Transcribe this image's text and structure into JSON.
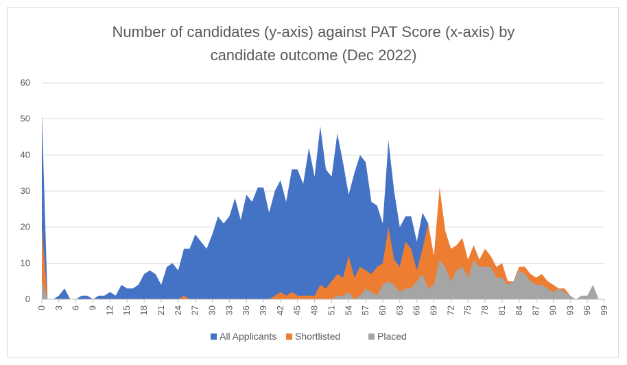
{
  "chart_data": {
    "type": "area",
    "title_line1": "Number of candidates (y-axis) against PAT Score (x-axis) by",
    "title_line2": "candidate outcome (Dec 2022)",
    "xlabel": "",
    "ylabel": "",
    "ylim": [
      0,
      60
    ],
    "y_ticks": [
      0,
      10,
      20,
      30,
      40,
      50,
      60
    ],
    "xlim": [
      0,
      99
    ],
    "x_tick_step": 3,
    "grid": true,
    "legend_position": "bottom",
    "series": [
      {
        "name": "All Applicants",
        "color": "#4472C4",
        "values": [
          52,
          0,
          0,
          1,
          3,
          0,
          0,
          1,
          1,
          0,
          1,
          1,
          2,
          1,
          4,
          3,
          3,
          4,
          7,
          8,
          7,
          4,
          9,
          10,
          8,
          14,
          14,
          18,
          16,
          14,
          18,
          23,
          21,
          23,
          28,
          22,
          29,
          27,
          31,
          31,
          24,
          30,
          33,
          27,
          36,
          36,
          32,
          42,
          34,
          48,
          36,
          34,
          46,
          38,
          29,
          35,
          40,
          38,
          27,
          26,
          21,
          44,
          30,
          20,
          23,
          23,
          16,
          24,
          21,
          0,
          0,
          0,
          0,
          0,
          0,
          0,
          0,
          0,
          0,
          0,
          0,
          0,
          0,
          0,
          0,
          0,
          0,
          0,
          0,
          0,
          0,
          0,
          0,
          0,
          0,
          0,
          0,
          0,
          0,
          0
        ]
      },
      {
        "name": "Shortlisted",
        "color": "#ED7D31",
        "values": [
          20,
          0,
          0,
          0,
          0,
          0,
          0,
          0,
          0,
          0,
          0,
          0,
          0,
          0,
          0,
          0,
          0,
          0,
          0,
          0,
          0,
          0,
          0,
          0,
          0,
          1,
          0,
          0,
          0,
          0,
          0,
          0,
          0,
          0,
          0,
          0,
          0,
          0,
          0,
          0,
          0,
          1,
          2,
          1,
          2,
          1,
          1,
          1,
          1,
          4,
          3,
          5,
          7,
          6,
          12,
          6,
          9,
          8,
          7,
          9,
          10,
          20,
          11,
          9,
          16,
          14,
          8,
          14,
          21,
          12,
          31,
          19,
          14,
          15,
          17,
          11,
          15,
          11,
          14,
          12,
          9,
          10,
          5,
          5,
          9,
          9,
          7,
          6,
          7,
          5,
          4,
          3,
          3,
          1,
          0,
          0,
          0,
          0,
          0,
          0
        ]
      },
      {
        "name": "Placed",
        "color": "#A5A5A5",
        "values": [
          5,
          0,
          0,
          0,
          0,
          0,
          0,
          0,
          0,
          0,
          0,
          0,
          0,
          0,
          0,
          0,
          0,
          0,
          0,
          0,
          0,
          0,
          0,
          0,
          0,
          0,
          0,
          0,
          0,
          0,
          0,
          0,
          0,
          0,
          0,
          0,
          0,
          0,
          0,
          0,
          0,
          0,
          0,
          0,
          0,
          0,
          0,
          0,
          0,
          0,
          0,
          0,
          1,
          1,
          2,
          0,
          1,
          3,
          2,
          1,
          4,
          5,
          4,
          2,
          3,
          3,
          5,
          7,
          3,
          4,
          11,
          9,
          5,
          8,
          9,
          6,
          11,
          9,
          9,
          9,
          6,
          6,
          4,
          5,
          8,
          7,
          5,
          4,
          4,
          3,
          2,
          3,
          2,
          1,
          0,
          1,
          1,
          4,
          0,
          0
        ]
      }
    ]
  }
}
